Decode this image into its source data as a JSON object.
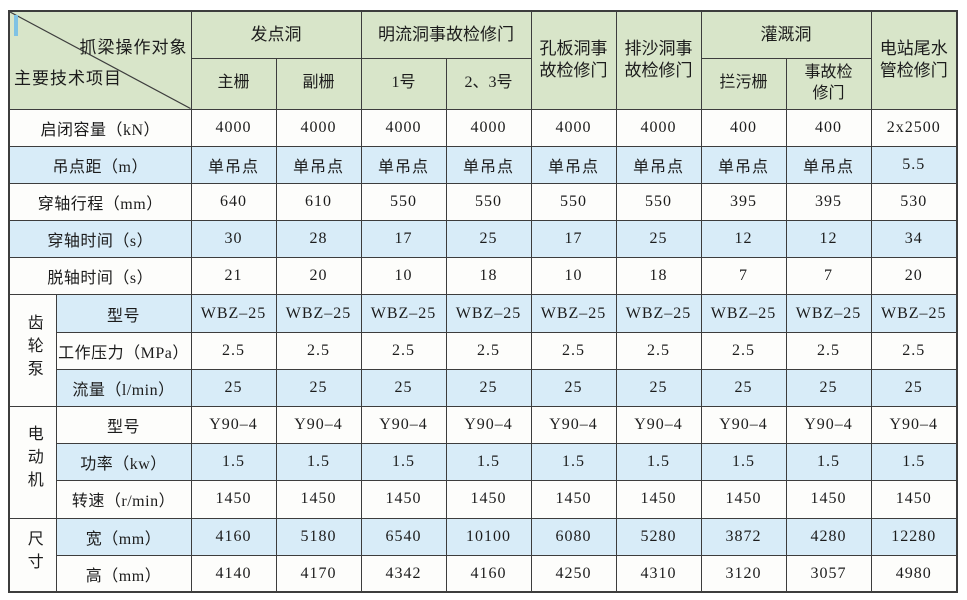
{
  "colors": {
    "header_green": "#d8e5c9",
    "row_blue": "#d8ecf8",
    "row_white": "#fdfdfb",
    "grid_line": "#3d3d3d",
    "text": "#1c1c1c",
    "cursor_tick": "#7fc2e4"
  },
  "header": {
    "corner_top": "抓梁操作对象",
    "corner_bottom": "主要技术项目",
    "groups": [
      {
        "label": "发点洞",
        "subs": [
          "主栅",
          "副栅"
        ]
      },
      {
        "label": "明流洞事故检修门",
        "subs": [
          "1号",
          "2、3号"
        ]
      },
      {
        "label": "孔板洞事\n故检修门",
        "subs": []
      },
      {
        "label": "排沙洞事\n故检修门",
        "subs": []
      },
      {
        "label": "灌溉洞",
        "subs": [
          "拦污栅",
          "事故检\n修门"
        ]
      },
      {
        "label": "电站尾水\n管检修门",
        "subs": []
      }
    ]
  },
  "rows": [
    {
      "label": "启闭容量（kN）",
      "shade": false,
      "values": [
        "4000",
        "4000",
        "4000",
        "4000",
        "4000",
        "4000",
        "400",
        "400",
        "2x2500"
      ]
    },
    {
      "label": "吊点距（m）",
      "shade": true,
      "values": [
        "单吊点",
        "单吊点",
        "单吊点",
        "单吊点",
        "单吊点",
        "单吊点",
        "单吊点",
        "单吊点",
        "5.5"
      ]
    },
    {
      "label": "穿轴行程（mm）",
      "shade": false,
      "values": [
        "640",
        "610",
        "550",
        "550",
        "550",
        "550",
        "395",
        "395",
        "530"
      ]
    },
    {
      "label": "穿轴时间（s）",
      "shade": true,
      "values": [
        "30",
        "28",
        "17",
        "25",
        "17",
        "25",
        "12",
        "12",
        "34"
      ]
    },
    {
      "label": "脱轴时间（s）",
      "shade": false,
      "values": [
        "21",
        "20",
        "10",
        "18",
        "10",
        "18",
        "7",
        "7",
        "20"
      ]
    },
    {
      "group": {
        "label": "齿轮泵",
        "span": 3
      },
      "label": "型号",
      "shade": true,
      "values": [
        "WBZ–25",
        "WBZ–25",
        "WBZ–25",
        "WBZ–25",
        "WBZ–25",
        "WBZ–25",
        "WBZ–25",
        "WBZ–25",
        "WBZ–25"
      ]
    },
    {
      "label": "工作压力（MPa）",
      "shade": false,
      "values": [
        "2.5",
        "2.5",
        "2.5",
        "2.5",
        "2.5",
        "2.5",
        "2.5",
        "2.5",
        "2.5"
      ]
    },
    {
      "label": "流量（l/min）",
      "shade": true,
      "values": [
        "25",
        "25",
        "25",
        "25",
        "25",
        "25",
        "25",
        "25",
        "25"
      ]
    },
    {
      "group": {
        "label": "电动机",
        "span": 3
      },
      "label": "型号",
      "shade": false,
      "values": [
        "Y90–4",
        "Y90–4",
        "Y90–4",
        "Y90–4",
        "Y90–4",
        "Y90–4",
        "Y90–4",
        "Y90–4",
        "Y90–4"
      ]
    },
    {
      "label": "功率（kw）",
      "shade": true,
      "values": [
        "1.5",
        "1.5",
        "1.5",
        "1.5",
        "1.5",
        "1.5",
        "1.5",
        "1.5",
        "1.5"
      ]
    },
    {
      "label": "转速（r/min）",
      "shade": false,
      "values": [
        "1450",
        "1450",
        "1450",
        "1450",
        "1450",
        "1450",
        "1450",
        "1450",
        "1450"
      ]
    },
    {
      "group": {
        "label": "尺寸",
        "span": 2
      },
      "label": "宽（mm）",
      "shade": true,
      "values": [
        "4160",
        "5180",
        "6540",
        "10100",
        "6080",
        "5280",
        "3872",
        "4280",
        "12280"
      ]
    },
    {
      "label": "高（mm）",
      "shade": false,
      "values": [
        "4140",
        "4170",
        "4342",
        "4160",
        "4250",
        "4310",
        "3120",
        "3057",
        "4980"
      ]
    }
  ]
}
